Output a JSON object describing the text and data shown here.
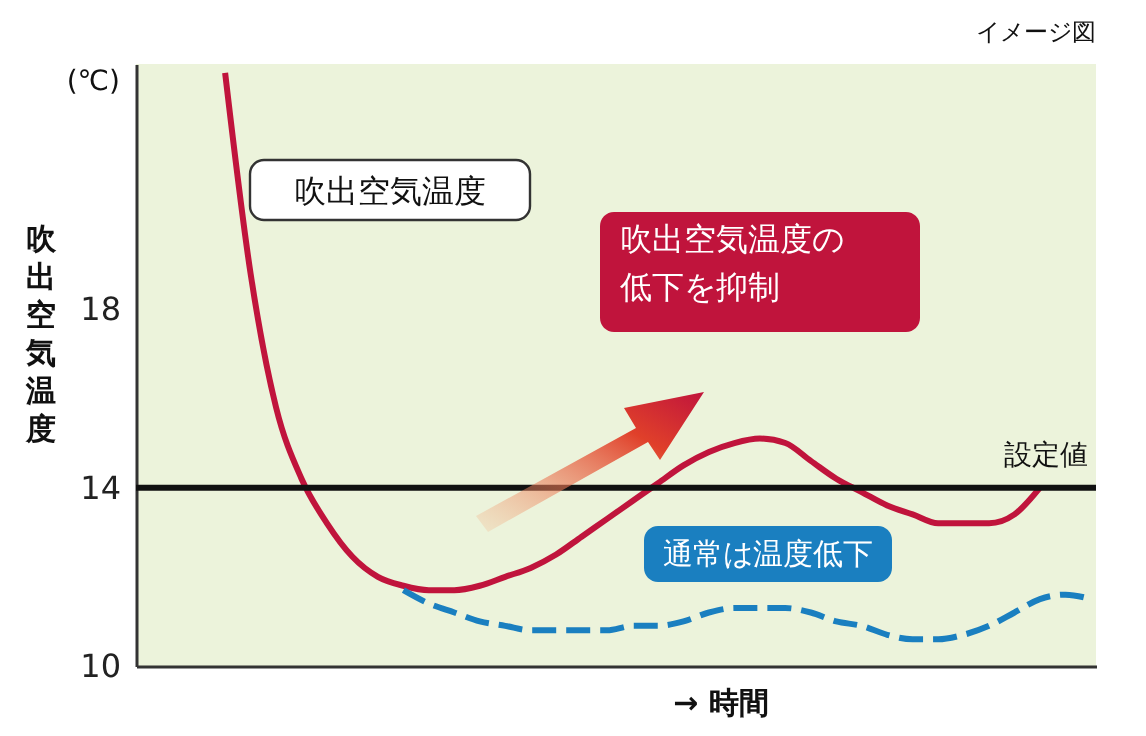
{
  "chart_data": {
    "type": "line",
    "xlabel": "→ 時間",
    "ylabel": "吹出空気温度",
    "categories": [
      null,
      null,
      null,
      null,
      null,
      null,
      null,
      null,
      null,
      null,
      null,
      null,
      null,
      null,
      null,
      null,
      null,
      null,
      null,
      null,
      null,
      null,
      null,
      null,
      null,
      null,
      null,
      null,
      null,
      null,
      null,
      null,
      null,
      null,
      null
    ],
    "series": [
      {
        "color": "#c0143c",
        "values": [
          23.3,
          18.8,
          15.8,
          14.2,
          13.2,
          12.45,
          12.0,
          11.8,
          11.7,
          11.7,
          11.8,
          12.0,
          12.2,
          12.5,
          12.9,
          13.3,
          13.7,
          14.1,
          14.5,
          14.8,
          15.0,
          15.1,
          15.0,
          14.6,
          14.2,
          13.9,
          13.6,
          13.4,
          13.2,
          13.2,
          13.2,
          13.4,
          14.0,
          null,
          null
        ]
      },
      {
        "color": "#1a7fc0",
        "line_style": "dashed",
        "values": [
          null,
          null,
          null,
          null,
          null,
          null,
          null,
          11.7,
          11.4,
          11.2,
          11.0,
          10.9,
          10.8,
          10.8,
          10.8,
          10.8,
          10.9,
          10.9,
          11.0,
          11.2,
          11.3,
          11.3,
          11.3,
          11.2,
          11.0,
          10.9,
          10.7,
          10.6,
          10.6,
          10.7,
          10.9,
          11.2,
          11.5,
          11.6,
          11.5
        ]
      }
    ],
    "ylim": [
      10,
      23.5
    ],
    "yticks": [
      10,
      14,
      18
    ],
    "tick_labels": "y",
    "grid": false,
    "ref_lines": [
      {
        "axis": "y",
        "value": 14,
        "label": "設定値",
        "color": "#111111"
      }
    ],
    "annotations": [
      "イメージ図",
      "(℃)",
      "吹出空気温度",
      "吹出空気温度の低下を抑制",
      "通常は温度低下"
    ]
  }
}
